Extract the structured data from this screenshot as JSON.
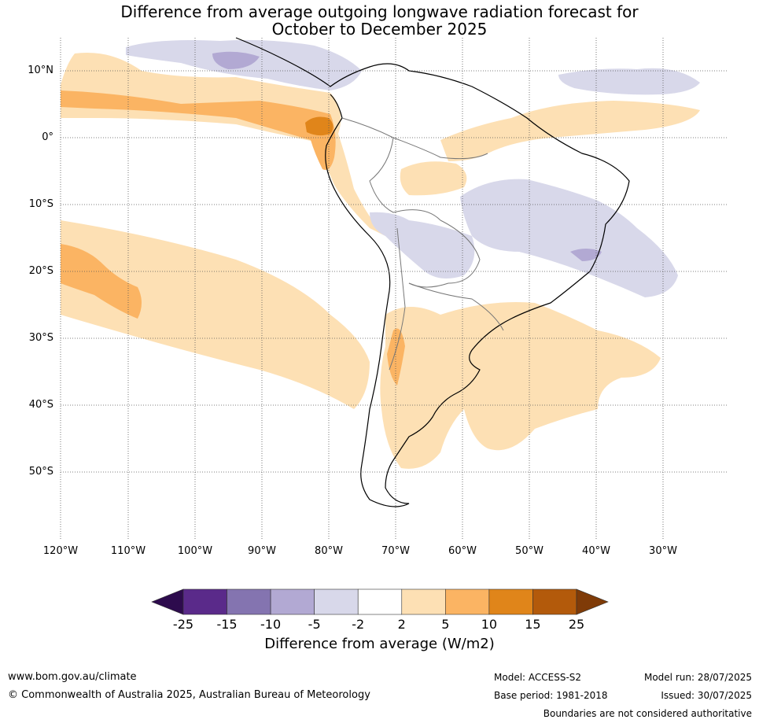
{
  "title_line1": "Difference from average outgoing longwave radiation forecast for",
  "title_line2": "October to December 2025",
  "lat_labels": [
    "10°N",
    "0°",
    "10°S",
    "20°S",
    "30°S",
    "40°S",
    "50°S"
  ],
  "lon_labels": [
    "120°W",
    "110°W",
    "100°W",
    "90°W",
    "80°W",
    "70°W",
    "60°W",
    "50°W",
    "40°W",
    "30°W"
  ],
  "colorbar": {
    "ticks": [
      "-25",
      "-15",
      "-10",
      "-5",
      "-2",
      "2",
      "5",
      "10",
      "15",
      "25"
    ],
    "colors": [
      "#2d0b4d",
      "#5a2a8a",
      "#8474b0",
      "#b2a9d3",
      "#d8d8ea",
      "#ffffff",
      "#fde0b4",
      "#fbb463",
      "#e0851a",
      "#b35a0b",
      "#7f3b08"
    ],
    "label": "Difference from average (W/m2)"
  },
  "footer": {
    "website": "www.bom.gov.au/climate",
    "copyright": "© Commonwealth of Australia 2025, Australian Bureau of Meteorology",
    "model": "Model: ACCESS-S2",
    "model_run": "Model run: 28/07/2025",
    "base_period": "Base period: 1981-2018",
    "issued": "Issued: 30/07/2025",
    "disclaimer": "Boundaries are not considered authoritative"
  }
}
